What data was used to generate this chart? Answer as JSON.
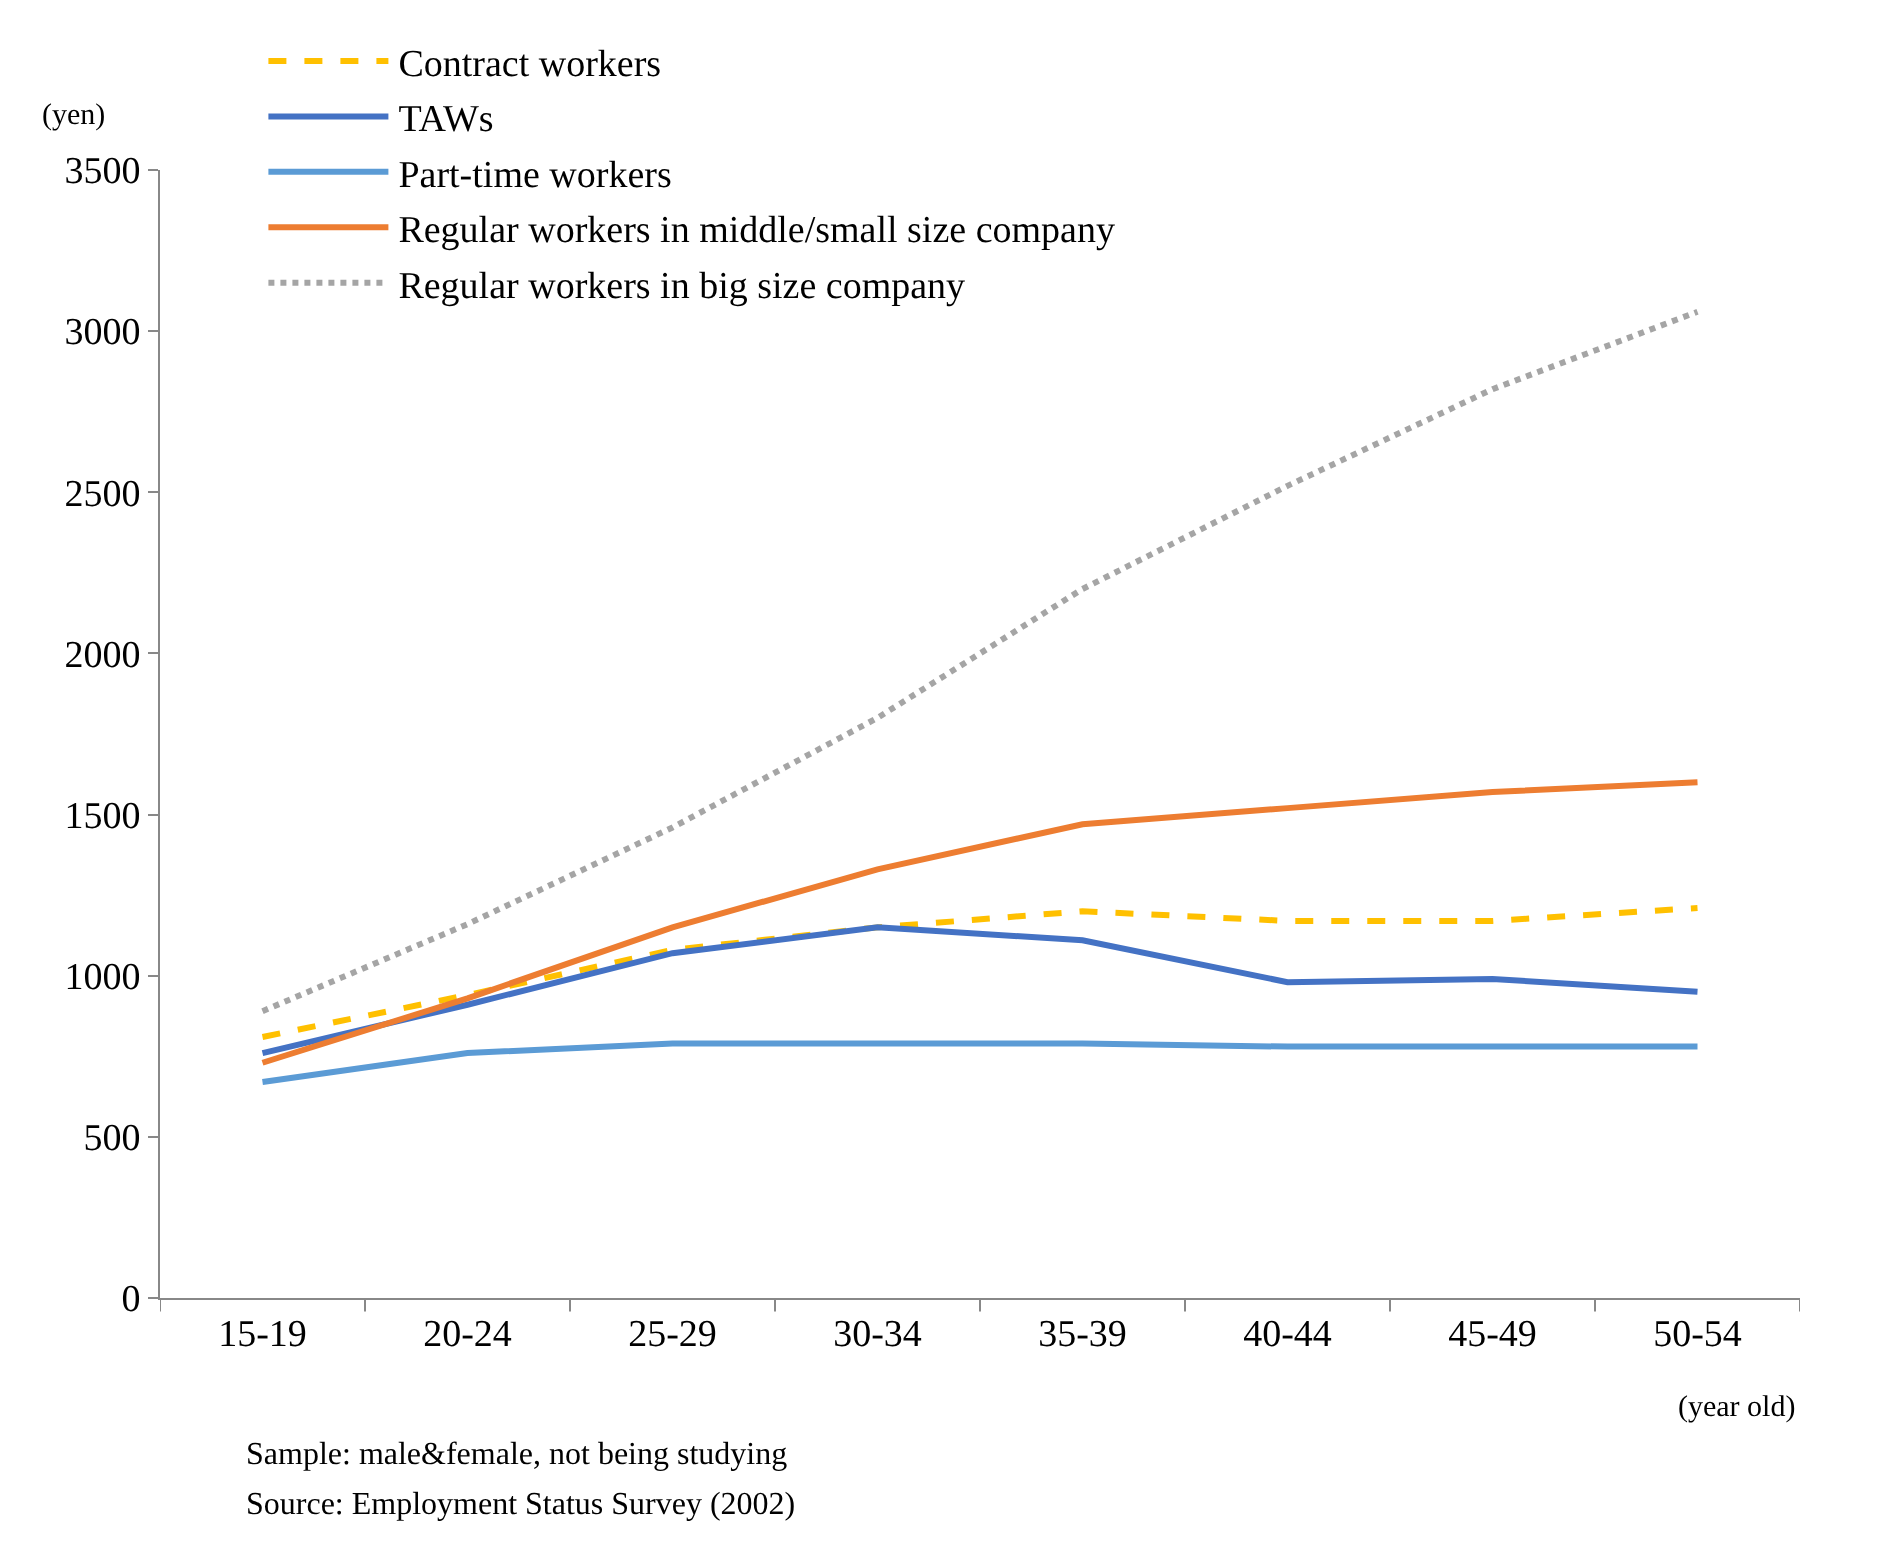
{
  "chart_data": {
    "type": "line",
    "categories": [
      "15-19",
      "20-24",
      "25-29",
      "30-34",
      "35-39",
      "40-44",
      "45-49",
      "50-54"
    ],
    "ylabel": "(yen)",
    "xlabel": "(year old)",
    "ylim": [
      0,
      3500
    ],
    "yticks": [
      0,
      500,
      1000,
      1500,
      2000,
      2500,
      3000,
      3500
    ],
    "grid": false,
    "legend": "top left",
    "marker": "none",
    "annotations": [
      "Sample: male&female, not being studying",
      "Source: Employment Status Survey (2002)"
    ],
    "series": [
      {
        "name": "Contract workers",
        "color": "#ffc000",
        "line_style": "dashed",
        "values": [
          810,
          940,
          1080,
          1150,
          1200,
          1170,
          1170,
          1210
        ]
      },
      {
        "name": "TAWs",
        "color": "#4472c4",
        "line_style": "solid",
        "values": [
          760,
          910,
          1070,
          1150,
          1110,
          980,
          990,
          950
        ]
      },
      {
        "name": "Part-time workers",
        "color": "#5b9bd5",
        "line_style": "solid",
        "values": [
          670,
          760,
          790,
          790,
          790,
          780,
          780,
          780
        ]
      },
      {
        "name": "Regular workers in middle/small size company",
        "color": "#ed7d31",
        "line_style": "solid",
        "values": [
          730,
          930,
          1150,
          1330,
          1470,
          1520,
          1570,
          1600
        ]
      },
      {
        "name": "Regular workers in big size company",
        "color": "#a5a5a5",
        "line_style": "dotted",
        "values": [
          890,
          1160,
          1460,
          1800,
          2200,
          2520,
          2820,
          3060
        ]
      }
    ]
  }
}
